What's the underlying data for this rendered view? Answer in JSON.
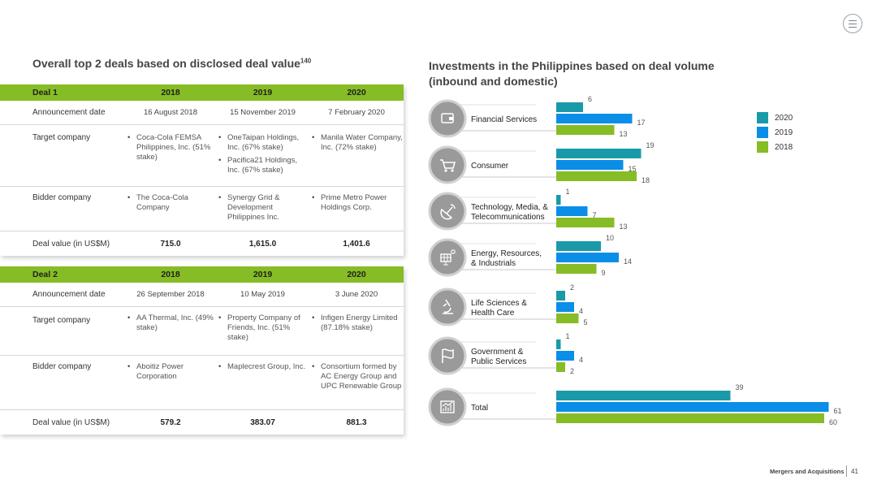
{
  "left_title": "Overall top 2 deals based on disclosed deal value",
  "left_title_sup": "140",
  "right_title": "Investments in the Philippines based on deal volume (inbound and domestic)",
  "deals": [
    {
      "header": [
        "Deal 1",
        "2018",
        "2019",
        "2020"
      ],
      "announcement_label": "Announcement date",
      "announcement": [
        "16 August 2018",
        "15 November 2019",
        "7 February 2020"
      ],
      "target_label": "Target company",
      "target": [
        [
          "Coca-Cola FEMSA Philippines, Inc. (51% stake)"
        ],
        [
          "OneTaipan Holdings, Inc. (67% stake)",
          "Pacifica21 Holdings, Inc. (67% stake)"
        ],
        [
          "Manila Water Company, Inc. (72% stake)"
        ]
      ],
      "bidder_label": "Bidder company",
      "bidder": [
        [
          "The Coca-Cola Company"
        ],
        [
          "Synergy Grid & Development Philippines Inc."
        ],
        [
          "Prime Metro Power Holdings Corp."
        ]
      ],
      "value_label": "Deal value (in US$M)",
      "value": [
        "715.0",
        "1,615.0",
        "1,401.6"
      ]
    },
    {
      "header": [
        "Deal 2",
        "2018",
        "2019",
        "2020"
      ],
      "announcement_label": "Announcement date",
      "announcement": [
        "26 September 2018",
        "10 May 2019",
        "3 June 2020"
      ],
      "target_label": "Target company",
      "target": [
        [
          "AA Thermal, Inc. (49% stake)"
        ],
        [
          "Property Company of Friends, Inc. (51% stake)"
        ],
        [
          "Infigen Energy Limited (87.18% stake)"
        ]
      ],
      "bidder_label": "Bidder company",
      "bidder": [
        [
          "Aboitiz Power Corporation"
        ],
        [
          "Maplecrest Group, Inc."
        ],
        [
          "Consortium formed by AC Energy Group and UPC Renewable Group"
        ]
      ],
      "value_label": "Deal value (in US$M)",
      "value": [
        "579.2",
        "383.07",
        "881.3"
      ]
    }
  ],
  "chart_data": {
    "type": "bar",
    "orientation": "horizontal",
    "categories": [
      "Financial Services",
      "Consumer",
      "Technology, Media, & Telecommunications",
      "Energy, Resources, & Industrials",
      "Life Sciences & Health Care",
      "Government & Public Services",
      "Total"
    ],
    "category_lines": [
      [
        "Financial Services"
      ],
      [
        "Consumer"
      ],
      [
        "Technology, Media, &",
        "Telecommunications"
      ],
      [
        "Energy, Resources,",
        "& Industrials"
      ],
      [
        "Life Sciences &",
        "Health Care"
      ],
      [
        "Government &",
        "Public Services"
      ],
      [
        "Total"
      ]
    ],
    "category_icons": [
      "wallet-icon",
      "shopping-cart-icon",
      "satellite-dish-icon",
      "solar-panel-icon",
      "microscope-icon",
      "flag-icon",
      "bar-chart-icon"
    ],
    "series": [
      {
        "name": "2020",
        "color": "#1a9aa8",
        "values": [
          6,
          19,
          1,
          10,
          2,
          1,
          39
        ]
      },
      {
        "name": "2019",
        "color": "#0b8ee8",
        "values": [
          17,
          15,
          7,
          14,
          4,
          4,
          61
        ]
      },
      {
        "name": "2018",
        "color": "#86bc25",
        "values": [
          13,
          18,
          13,
          9,
          5,
          2,
          60
        ]
      }
    ],
    "legend_position": "top-right",
    "grid": false
  },
  "footer": {
    "section": "Mergers and Acquisitions",
    "page": "41"
  }
}
